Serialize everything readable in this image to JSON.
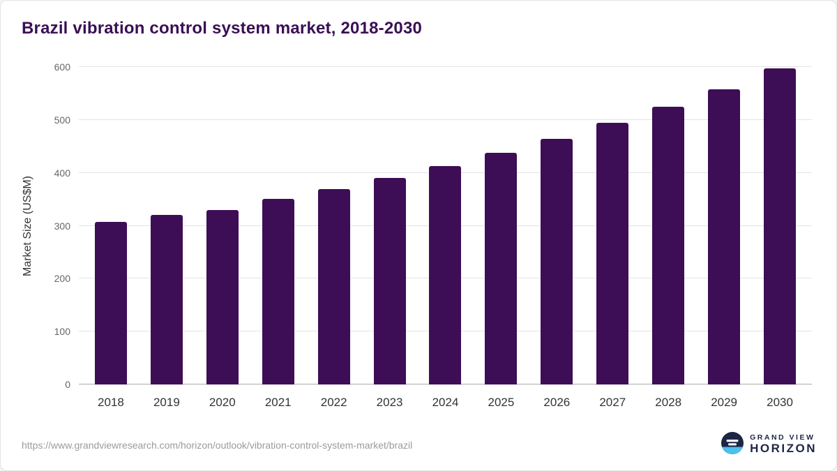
{
  "title": "Brazil vibration control system market, 2018-2030",
  "chart_data": {
    "type": "bar",
    "title": "Brazil vibration control system market, 2018-2030",
    "categories": [
      "2018",
      "2019",
      "2020",
      "2021",
      "2022",
      "2023",
      "2024",
      "2025",
      "2026",
      "2027",
      "2028",
      "2029",
      "2030"
    ],
    "values": [
      307,
      321,
      330,
      351,
      369,
      390,
      413,
      438,
      464,
      494,
      525,
      558,
      597
    ],
    "xlabel": "",
    "ylabel": "Market Size (US$M)",
    "ylim": [
      0,
      600
    ],
    "yticks": [
      0,
      100,
      200,
      300,
      400,
      500,
      600
    ],
    "grid": true,
    "legend": "none",
    "bar_color": "#3d0d56"
  },
  "colors": {
    "title": "#3a0f54",
    "bar": "#3d0d56",
    "gridline": "#e4e4e4",
    "logo_navy": "#1d2545",
    "logo_cyan": "#4cc0ee"
  },
  "footer": {
    "source_url": "https://www.grandviewresearch.com/horizon/outlook/vibration-control-system-market/brazil",
    "logo": {
      "line1": "GRAND VIEW",
      "line2": "HORIZON",
      "icon": "horizon-circle-icon"
    }
  }
}
